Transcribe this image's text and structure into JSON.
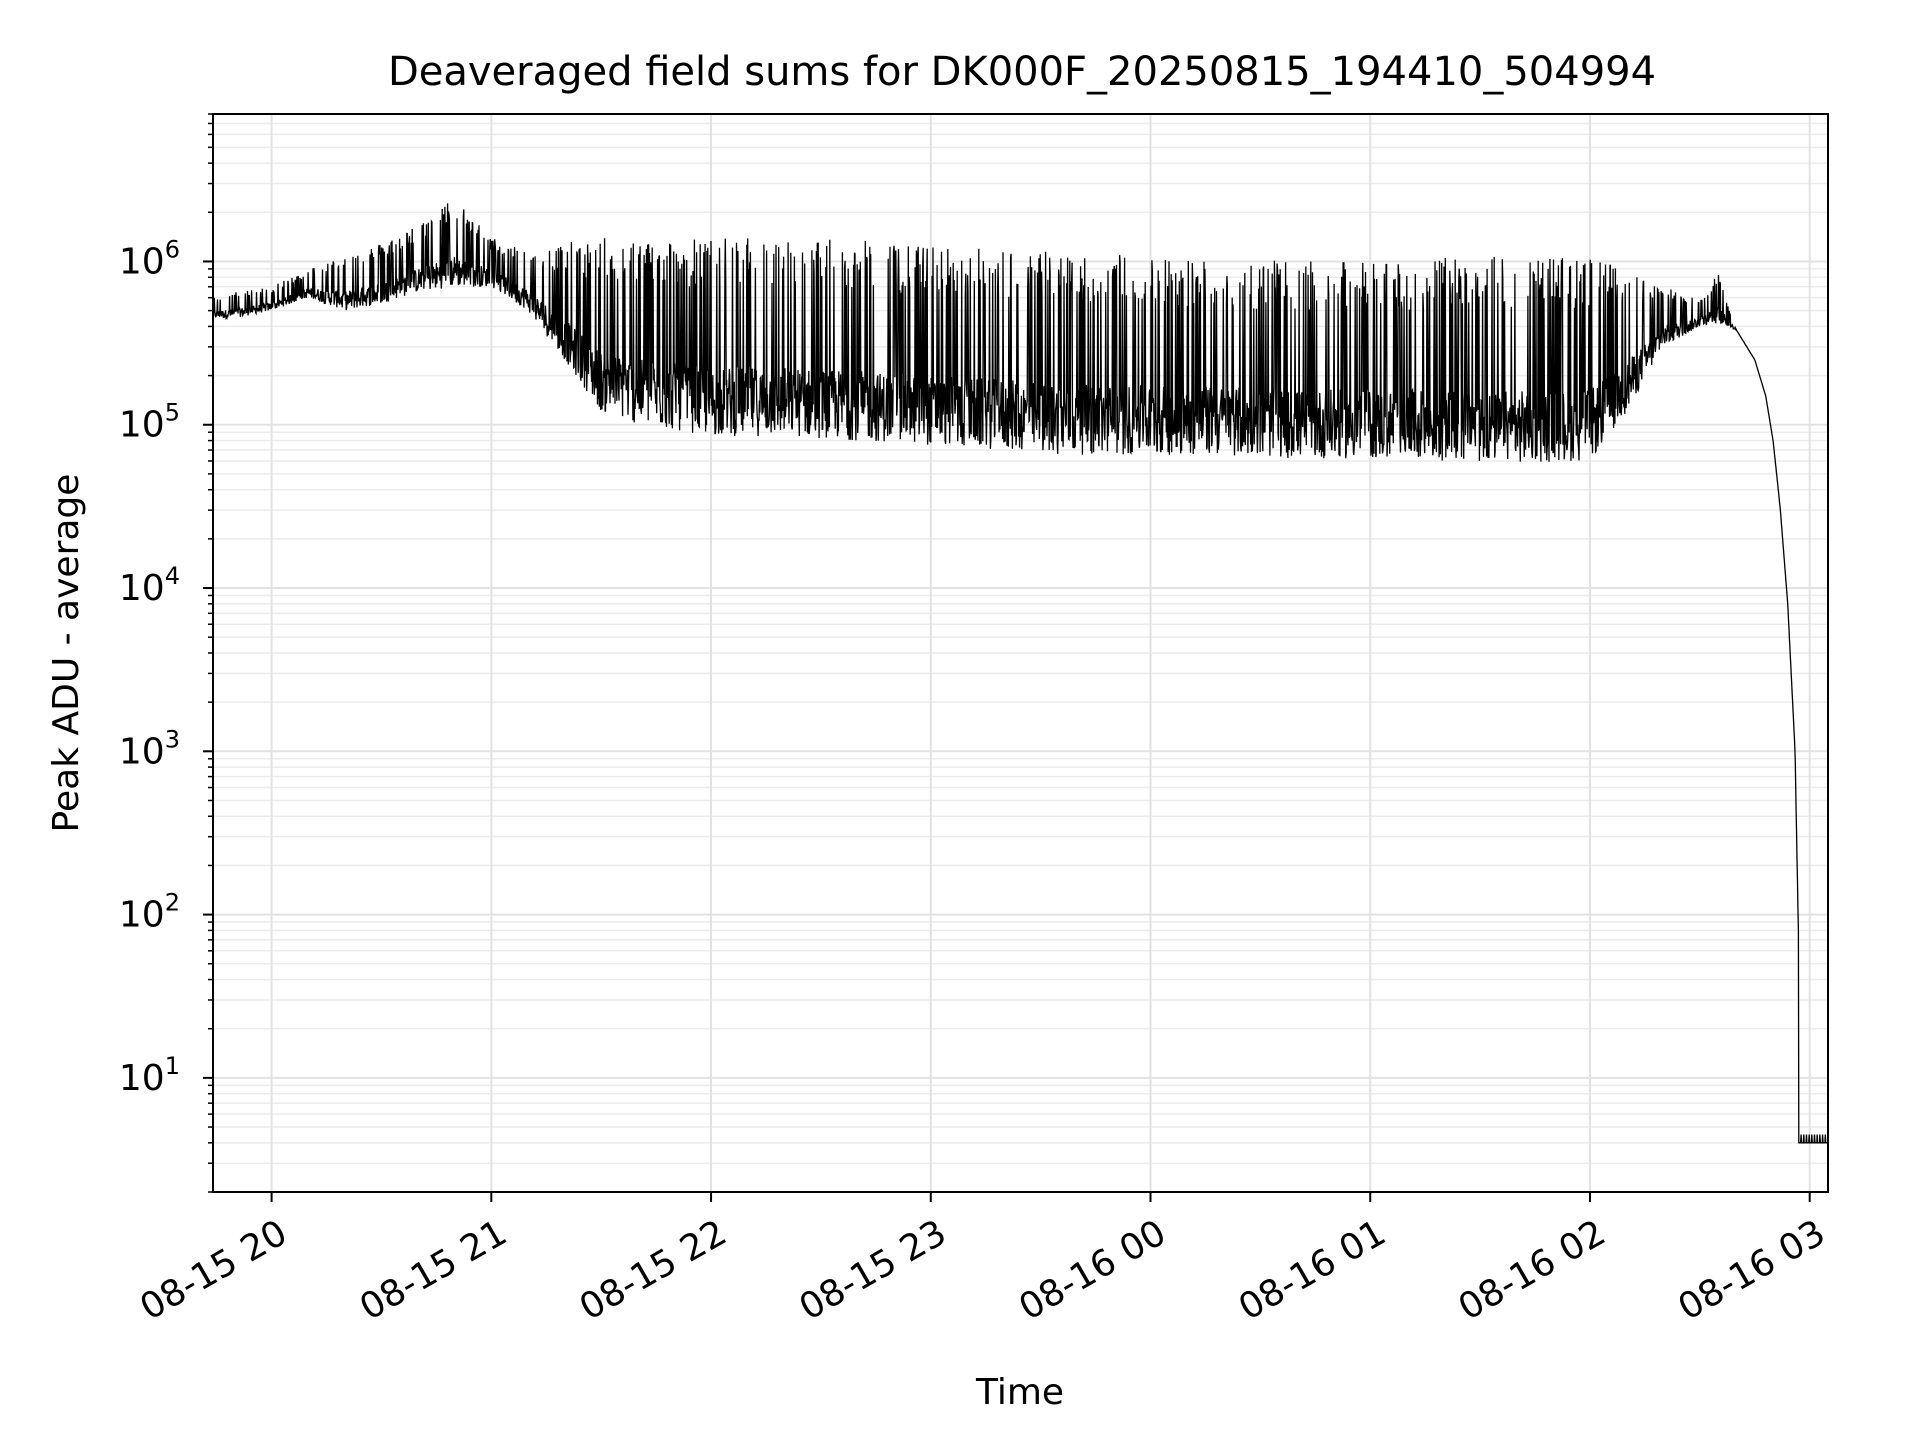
{
  "chart_data": {
    "type": "line",
    "title": "Deaveraged field sums for DK000F_20250815_194410_504994",
    "xlabel": "Time",
    "ylabel": "Peak ADU - average",
    "x_scale": "time",
    "y_scale": "log",
    "xlim": [
      "2025-08-15 19:44",
      "2025-08-16 03:05"
    ],
    "ylim": [
      2,
      8000000
    ],
    "grid": "major and minor",
    "x_tick_labels": [
      "08-15 20",
      "08-15 21",
      "08-15 22",
      "08-15 23",
      "08-16 00",
      "08-16 01",
      "08-16 02",
      "08-16 03"
    ],
    "y_tick_labels": [
      {
        "base": "10",
        "exp": "1",
        "value": 10
      },
      {
        "base": "10",
        "exp": "2",
        "value": 100
      },
      {
        "base": "10",
        "exp": "3",
        "value": 1000
      },
      {
        "base": "10",
        "exp": "4",
        "value": 10000
      },
      {
        "base": "10",
        "exp": "5",
        "value": 100000
      },
      {
        "base": "10",
        "exp": "6",
        "value": 1000000
      }
    ],
    "series": [
      {
        "color": "#000000",
        "x": [
          "2025-08-15 19:44",
          "2025-08-15 19:50",
          "2025-08-15 20:00",
          "2025-08-15 20:10",
          "2025-08-15 20:20",
          "2025-08-15 20:30",
          "2025-08-15 20:40",
          "2025-08-15 20:50",
          "2025-08-15 21:00",
          "2025-08-15 21:10",
          "2025-08-15 21:20",
          "2025-08-15 21:30",
          "2025-08-15 21:40",
          "2025-08-15 22:00",
          "2025-08-15 22:20",
          "2025-08-15 22:40",
          "2025-08-15 23:00",
          "2025-08-15 23:20",
          "2025-08-15 23:40",
          "2025-08-16 00:00",
          "2025-08-16 00:20",
          "2025-08-16 00:40",
          "2025-08-16 01:00",
          "2025-08-16 01:20",
          "2025-08-16 01:40",
          "2025-08-16 02:00",
          "2025-08-16 02:10",
          "2025-08-16 02:20",
          "2025-08-16 02:30",
          "2025-08-16 02:35",
          "2025-08-16 02:40",
          "2025-08-16 02:45",
          "2025-08-16 02:48",
          "2025-08-16 02:50",
          "2025-08-16 02:52",
          "2025-08-16 02:54",
          "2025-08-16 02:56",
          "2025-08-16 02:58",
          "2025-08-16 03:00",
          "2025-08-16 03:05"
        ],
        "baseline": [
          450000,
          450000,
          500000,
          600000,
          500000,
          550000,
          650000,
          700000,
          700000,
          500000,
          250000,
          120000,
          100000,
          85000,
          85000,
          80000,
          75000,
          70000,
          65000,
          65000,
          65000,
          62000,
          62000,
          60000,
          58000,
          60000,
          120000,
          300000,
          400000,
          420000,
          380000,
          250000,
          150000,
          80000,
          30000,
          8000,
          1000,
          4,
          4,
          4
        ],
        "peak": [
          600000,
          650000,
          700000,
          900000,
          1100000,
          1300000,
          1700000,
          2500000,
          1400000,
          1200000,
          1300000,
          1400000,
          1400000,
          1400000,
          1400000,
          1350000,
          1250000,
          1200000,
          1150000,
          1100000,
          1050000,
          1000000,
          1000000,
          1050000,
          1100000,
          1050000,
          900000,
          700000,
          600000,
          850000,
          380000,
          250000,
          150000,
          80000,
          30000,
          8000,
          1000,
          4,
          4.5,
          4.5
        ]
      }
    ]
  }
}
